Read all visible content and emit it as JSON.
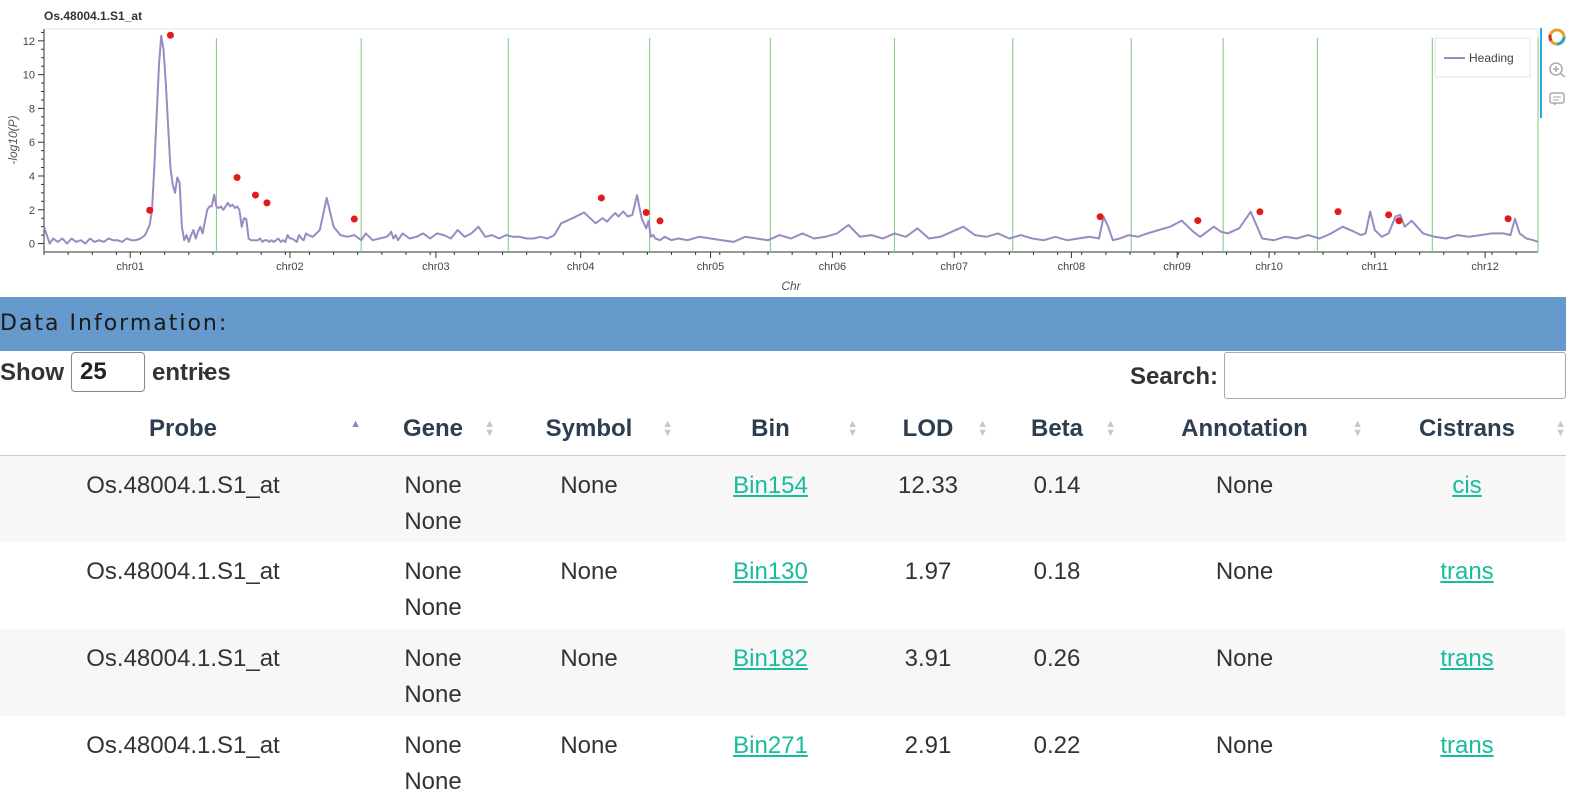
{
  "plot": {
    "title": "Os.48004.1.S1_at",
    "xlabel": "Chr",
    "ylabel": "-log10(P)",
    "legend": "Heading"
  },
  "chart_data": {
    "type": "line",
    "title": "Os.48004.1.S1_at",
    "xlabel": "Chr",
    "ylabel": "-log10(P)",
    "ylim": [
      -0.5,
      12.7
    ],
    "yticks": [
      0,
      2,
      4,
      6,
      8,
      10,
      12
    ],
    "categories": [
      "chr01",
      "chr02",
      "chr03",
      "chr04",
      "chr05",
      "chr06",
      "chr07",
      "chr08",
      "chr09",
      "chr10",
      "chr11",
      "chr12"
    ],
    "x_axis_span": [
      0,
      1300
    ],
    "chromosome_boundaries": [
      150,
      276,
      404,
      527,
      632,
      740,
      843,
      946,
      1026,
      1108,
      1208,
      1300
    ],
    "tick_positions": [
      75,
      214,
      341,
      467,
      580,
      686,
      792,
      894,
      986,
      1066,
      1158,
      1254
    ],
    "legend_position": "top-right",
    "colors": {
      "line": "#9b8ac2",
      "boundary": "#7bc67b",
      "peak": "#e31a1c"
    },
    "series": [
      {
        "name": "Heading",
        "x": [
          0,
          3,
          5,
          8,
          12,
          16,
          20,
          24,
          28,
          32,
          36,
          40,
          44,
          48,
          52,
          56,
          60,
          64,
          68,
          72,
          76,
          80,
          84,
          88,
          92,
          94,
          96,
          98,
          100,
          102,
          104,
          106,
          108,
          110,
          112,
          114,
          116,
          118,
          120,
          122,
          124,
          126,
          128,
          130,
          132,
          134,
          136,
          138,
          140,
          142,
          144,
          146,
          148,
          150,
          152,
          154,
          156,
          158,
          160,
          162,
          164,
          166,
          168,
          170,
          172,
          174,
          176,
          178,
          180,
          182,
          184,
          186,
          188,
          190,
          192,
          194,
          196,
          198,
          200,
          202,
          204,
          206,
          208,
          210,
          212,
          214,
          216,
          218,
          220,
          222,
          224,
          226,
          228,
          230,
          234,
          240,
          246,
          252,
          258,
          264,
          270,
          276,
          280,
          286,
          292,
          298,
          300,
          302,
          304,
          306,
          308,
          312,
          318,
          324,
          330,
          336,
          342,
          348,
          354,
          360,
          366,
          372,
          378,
          384,
          390,
          396,
          402,
          408,
          414,
          420,
          426,
          432,
          438,
          444,
          450,
          460,
          470,
          480,
          486,
          490,
          494,
          497,
          500,
          504,
          508,
          512,
          516,
          520,
          524,
          526,
          528,
          530,
          532,
          536,
          540,
          546,
          552,
          560,
          570,
          580,
          590,
          600,
          610,
          620,
          630,
          640,
          650,
          660,
          670,
          680,
          690,
          700,
          710,
          720,
          730,
          740,
          750,
          760,
          770,
          780,
          790,
          800,
          810,
          820,
          830,
          840,
          850,
          860,
          870,
          880,
          890,
          900,
          910,
          918,
          922,
          926,
          930,
          936,
          944,
          952,
          960,
          970,
          980,
          990,
          1000,
          1006,
          1010,
          1014,
          1018,
          1024,
          1030,
          1040,
          1050,
          1060,
          1070,
          1080,
          1090,
          1100,
          1110,
          1120,
          1130,
          1140,
          1146,
          1150,
          1154,
          1158,
          1164,
          1170,
          1176,
          1180,
          1184,
          1190,
          1200,
          1210,
          1220,
          1230,
          1240,
          1250,
          1260,
          1270,
          1276,
          1280,
          1284,
          1290,
          1296,
          1300
        ],
        "y": [
          1.0,
          0.4,
          0.0,
          0.3,
          0.1,
          0.3,
          0.0,
          0.3,
          0.1,
          0.2,
          0.0,
          0.3,
          0.1,
          0.2,
          0.1,
          0.3,
          0.2,
          0.2,
          0.1,
          0.3,
          0.2,
          0.2,
          0.3,
          0.5,
          1.1,
          1.97,
          4.5,
          7.5,
          10.5,
          12.3,
          11.5,
          9.5,
          7.0,
          4.5,
          3.5,
          3.0,
          3.91,
          3.6,
          1.0,
          0.2,
          0.5,
          0.1,
          0.5,
          0.8,
          0.3,
          0.7,
          1.0,
          0.6,
          1.3,
          2.0,
          2.2,
          2.2,
          2.9,
          2.2,
          2.1,
          2.2,
          2.0,
          2.2,
          2.41,
          2.2,
          2.3,
          2.1,
          2.2,
          2.0,
          1.0,
          1.5,
          1.45,
          0.3,
          0.2,
          0.2,
          0.2,
          0.2,
          0.3,
          0.1,
          0.2,
          0.2,
          0.1,
          0.2,
          0.1,
          0.2,
          0.3,
          0.1,
          0.2,
          0.1,
          0.5,
          0.3,
          0.3,
          0.2,
          0.1,
          0.5,
          0.3,
          0.2,
          0.6,
          0.5,
          0.4,
          0.8,
          2.7,
          1.0,
          0.5,
          0.4,
          0.5,
          0.2,
          0.6,
          0.2,
          0.3,
          0.4,
          0.5,
          0.7,
          0.3,
          0.5,
          0.2,
          0.6,
          0.3,
          0.4,
          0.6,
          0.3,
          0.6,
          0.5,
          0.3,
          0.8,
          0.4,
          0.6,
          1.0,
          0.4,
          0.5,
          0.3,
          0.5,
          0.4,
          0.4,
          0.3,
          0.3,
          0.4,
          0.3,
          0.5,
          1.2,
          1.5,
          1.84,
          1.2,
          1.5,
          1.3,
          1.6,
          1.8,
          1.6,
          1.9,
          1.6,
          1.7,
          2.87,
          1.5,
          0.9,
          1.34,
          0.4,
          0.5,
          0.3,
          0.2,
          0.4,
          0.2,
          0.3,
          0.2,
          0.4,
          0.3,
          0.2,
          0.1,
          0.4,
          0.3,
          0.2,
          0.5,
          0.3,
          0.6,
          0.3,
          0.4,
          0.6,
          1.1,
          0.4,
          0.5,
          0.3,
          0.6,
          0.4,
          0.9,
          0.3,
          0.4,
          0.7,
          1.0,
          0.5,
          0.4,
          0.6,
          0.3,
          0.5,
          0.3,
          0.2,
          0.4,
          0.2,
          0.3,
          0.4,
          0.3,
          1.59,
          1.0,
          0.2,
          0.3,
          0.5,
          0.4,
          0.6,
          0.8,
          1.0,
          1.36,
          0.7,
          0.4,
          0.6,
          0.8,
          1.0,
          0.7,
          0.6,
          0.9,
          1.88,
          0.3,
          0.2,
          0.4,
          0.3,
          0.5,
          0.3,
          0.6,
          1.0,
          0.7,
          0.5,
          0.6,
          1.89,
          0.8,
          0.4,
          0.6,
          1.6,
          1.7,
          1.0,
          1.35,
          0.6,
          0.4,
          0.3,
          0.5,
          0.4,
          0.5,
          0.6,
          0.6,
          0.5,
          1.47,
          0.6,
          0.3,
          0.2,
          0.1
        ]
      },
      {
        "name": "peaks",
        "x": [
          92,
          110,
          168,
          184,
          194,
          270,
          485,
          524,
          536,
          919,
          1004,
          1058,
          1126,
          1170,
          1179,
          1274
        ],
        "y": [
          1.97,
          12.33,
          3.91,
          2.87,
          2.41,
          1.45,
          2.7,
          1.84,
          1.34,
          1.59,
          1.36,
          1.88,
          1.89,
          1.7,
          1.35,
          1.47
        ]
      }
    ]
  },
  "section": {
    "title": "Data Information:"
  },
  "controls": {
    "show_label": "Show",
    "page_length": "25",
    "entries_label": "entries",
    "search_label": "Search:",
    "search_value": ""
  },
  "table": {
    "headers": [
      "Probe",
      "Gene",
      "Symbol",
      "Bin",
      "LOD",
      "Beta",
      "Annotation",
      "Cistrans"
    ],
    "rows": [
      {
        "probe": "Os.48004.1.S1_at",
        "gene1": "None",
        "gene2": "None",
        "symbol": "None",
        "bin": "Bin154",
        "lod": "12.33",
        "beta": "0.14",
        "annotation": "None",
        "cistrans": "cis"
      },
      {
        "probe": "Os.48004.1.S1_at",
        "gene1": "None",
        "gene2": "None",
        "symbol": "None",
        "bin": "Bin130",
        "lod": "1.97",
        "beta": "0.18",
        "annotation": "None",
        "cistrans": "trans"
      },
      {
        "probe": "Os.48004.1.S1_at",
        "gene1": "None",
        "gene2": "None",
        "symbol": "None",
        "bin": "Bin182",
        "lod": "3.91",
        "beta": "0.26",
        "annotation": "None",
        "cistrans": "trans"
      },
      {
        "probe": "Os.48004.1.S1_at",
        "gene1": "None",
        "gene2": "None",
        "symbol": "None",
        "bin": "Bin271",
        "lod": "2.91",
        "beta": "0.22",
        "annotation": "None",
        "cistrans": "trans"
      }
    ]
  }
}
